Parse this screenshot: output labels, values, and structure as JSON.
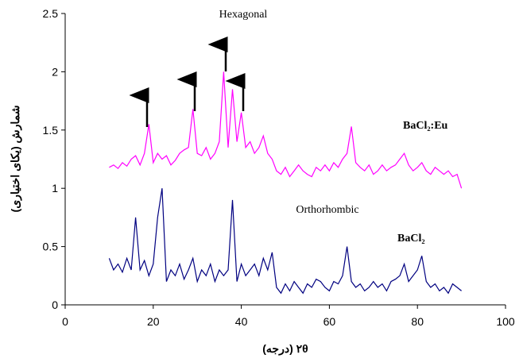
{
  "chart_data": {
    "type": "line",
    "x_label": "۲θ (درجه)",
    "y_label": "شمارش (یکای اختیاری)",
    "annotations": [
      "Hexagonal",
      "Orthorhombic"
    ],
    "x": [
      10,
      11,
      12,
      13,
      14,
      15,
      16,
      17,
      18,
      19,
      20,
      21,
      22,
      23,
      24,
      25,
      26,
      27,
      28,
      29,
      30,
      31,
      32,
      33,
      34,
      35,
      36,
      37,
      38,
      39,
      40,
      41,
      42,
      43,
      44,
      45,
      46,
      47,
      48,
      49,
      50,
      51,
      52,
      53,
      54,
      55,
      56,
      57,
      58,
      59,
      60,
      61,
      62,
      63,
      64,
      65,
      66,
      67,
      68,
      69,
      70,
      71,
      72,
      73,
      74,
      75,
      76,
      77,
      78,
      79,
      80,
      81,
      82,
      83,
      84,
      85,
      86,
      87,
      88,
      89,
      90
    ],
    "series": [
      {
        "name": "BaCl₂:Eu",
        "color": "#ff00ff",
        "values": [
          1.18,
          1.2,
          1.17,
          1.22,
          1.19,
          1.25,
          1.28,
          1.2,
          1.3,
          1.55,
          1.22,
          1.3,
          1.25,
          1.28,
          1.2,
          1.24,
          1.3,
          1.33,
          1.35,
          1.68,
          1.3,
          1.28,
          1.35,
          1.25,
          1.3,
          1.4,
          2.0,
          1.35,
          1.85,
          1.4,
          1.65,
          1.35,
          1.4,
          1.3,
          1.35,
          1.45,
          1.3,
          1.25,
          1.15,
          1.12,
          1.18,
          1.1,
          1.15,
          1.2,
          1.15,
          1.12,
          1.1,
          1.18,
          1.15,
          1.2,
          1.15,
          1.22,
          1.18,
          1.25,
          1.3,
          1.53,
          1.22,
          1.18,
          1.15,
          1.2,
          1.12,
          1.15,
          1.2,
          1.15,
          1.18,
          1.2,
          1.25,
          1.3,
          1.2,
          1.15,
          1.18,
          1.22,
          1.15,
          1.12,
          1.18,
          1.15,
          1.12,
          1.15,
          1.1,
          1.12,
          1.0
        ]
      },
      {
        "name": "BaCl₂",
        "color": "#000080",
        "values": [
          0.4,
          0.3,
          0.35,
          0.28,
          0.4,
          0.3,
          0.75,
          0.3,
          0.38,
          0.25,
          0.35,
          0.75,
          1.0,
          0.2,
          0.3,
          0.25,
          0.35,
          0.22,
          0.3,
          0.4,
          0.2,
          0.3,
          0.25,
          0.35,
          0.2,
          0.3,
          0.25,
          0.3,
          0.9,
          0.2,
          0.35,
          0.25,
          0.3,
          0.35,
          0.25,
          0.4,
          0.3,
          0.45,
          0.15,
          0.1,
          0.18,
          0.12,
          0.2,
          0.15,
          0.1,
          0.18,
          0.15,
          0.22,
          0.2,
          0.15,
          0.12,
          0.2,
          0.18,
          0.25,
          0.5,
          0.2,
          0.15,
          0.18,
          0.12,
          0.15,
          0.2,
          0.15,
          0.18,
          0.12,
          0.2,
          0.22,
          0.25,
          0.35,
          0.2,
          0.25,
          0.3,
          0.42,
          0.2,
          0.15,
          0.18,
          0.12,
          0.15,
          0.1,
          0.18,
          0.15,
          0.12
        ]
      }
    ],
    "xlim": [
      0,
      100
    ],
    "xticks": [
      0,
      20,
      40,
      60,
      80,
      100
    ],
    "ylim": [
      0,
      2.5
    ],
    "yticks": [
      0,
      0.5,
      1,
      {
        "value": 1.5,
        "label": "1.5"
      },
      2,
      2.5
    ],
    "grid": false
  }
}
